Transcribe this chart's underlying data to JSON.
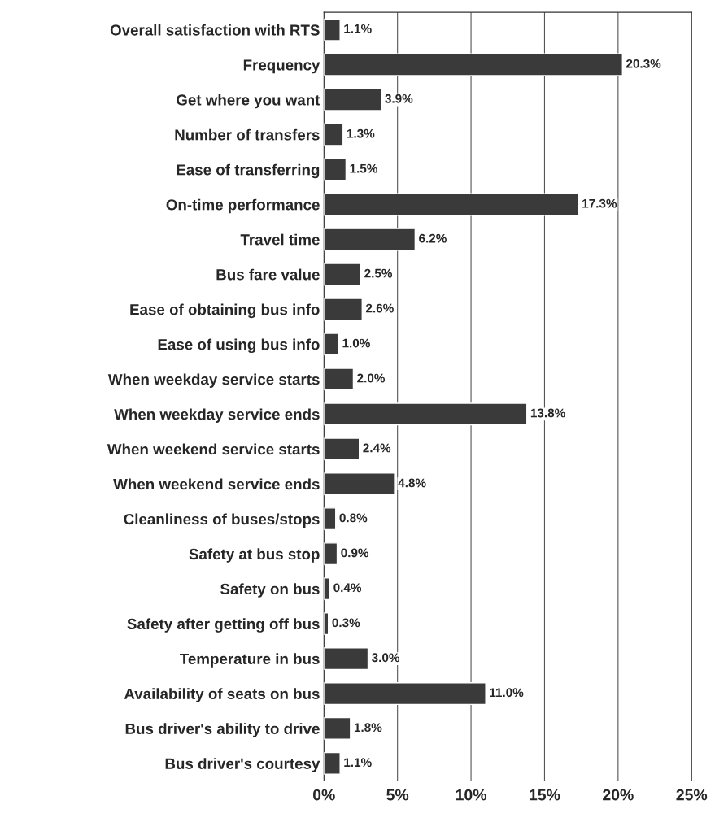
{
  "chart_data": {
    "type": "bar",
    "orientation": "horizontal",
    "categories": [
      "Overall satisfaction with RTS",
      "Frequency",
      "Get where you want",
      "Number of transfers",
      "Ease of transferring",
      "On-time performance",
      "Travel time",
      "Bus fare value",
      "Ease of obtaining bus info",
      "Ease of using bus info",
      "When weekday service starts",
      "When weekday service ends",
      "When weekend service starts",
      "When weekend service ends",
      "Cleanliness of buses/stops",
      "Safety at bus stop",
      "Safety on bus",
      "Safety after getting off bus",
      "Temperature in bus",
      "Availability of seats on bus",
      "Bus driver's ability to drive",
      "Bus driver's courtesy"
    ],
    "values": [
      1.1,
      20.3,
      3.9,
      1.3,
      1.5,
      17.3,
      6.2,
      2.5,
      2.6,
      1.0,
      2.0,
      13.8,
      2.4,
      4.8,
      0.8,
      0.9,
      0.4,
      0.3,
      3.0,
      11.0,
      1.8,
      1.1
    ],
    "value_labels": [
      "1.1%",
      "20.3%",
      "3.9%",
      "1.3%",
      "1.5%",
      "17.3%",
      "6.2%",
      "2.5%",
      "2.6%",
      "1.0%",
      "2.0%",
      "13.8%",
      "2.4%",
      "4.8%",
      "0.8%",
      "0.9%",
      "0.4%",
      "0.3%",
      "3.0%",
      "11.0%",
      "1.8%",
      "1.1%"
    ],
    "color": "#3a3a3a",
    "xlim": [
      0,
      25
    ],
    "xticks": [
      {
        "value": 0,
        "label": "0%"
      },
      {
        "value": 5,
        "label": "5%"
      },
      {
        "value": 10,
        "label": "10%"
      },
      {
        "value": 15,
        "label": "15%"
      },
      {
        "value": 20,
        "label": "20%"
      },
      {
        "value": 25,
        "label": "25%"
      }
    ],
    "grid": "x"
  }
}
